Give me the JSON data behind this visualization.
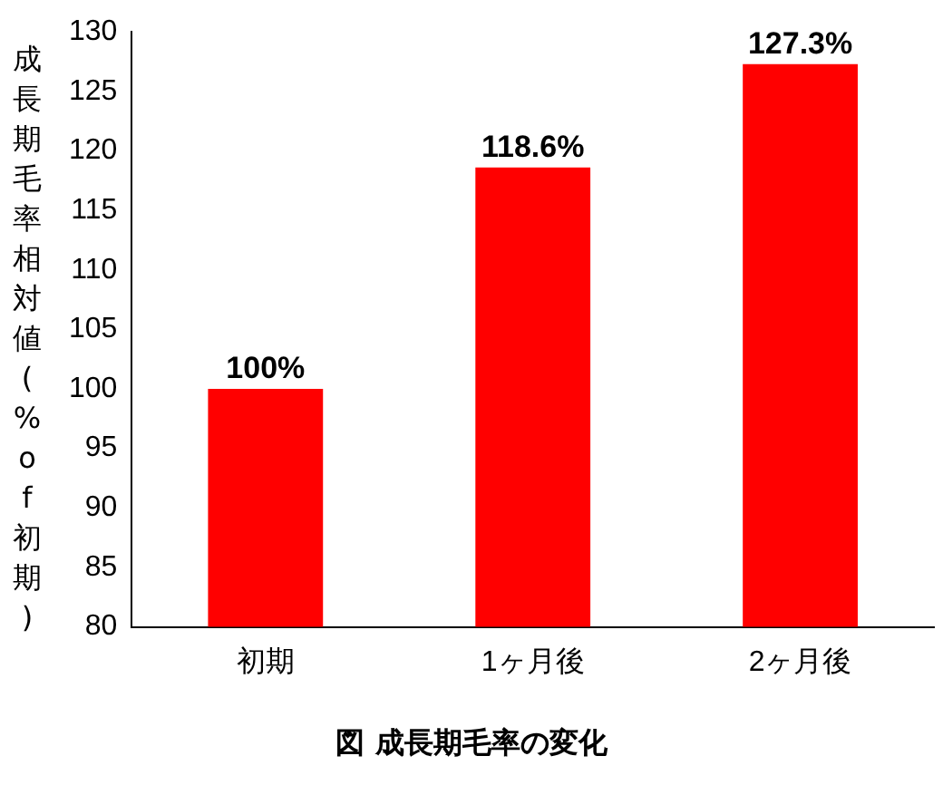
{
  "chart_data": {
    "type": "bar",
    "title": "図 成長期毛率の変化",
    "ylabel": "成長期毛率相対値(%of初期)",
    "categories": [
      "初期",
      "1ヶ月後",
      "2ヶ月後"
    ],
    "values": [
      100,
      118.6,
      127.3
    ],
    "value_labels": [
      "100%",
      "118.6%",
      "127.3%"
    ],
    "color": "#ff0000",
    "ylim": [
      80,
      130
    ],
    "yticks": [
      80,
      85,
      90,
      95,
      100,
      105,
      110,
      115,
      120,
      125,
      130
    ],
    "grid": false,
    "legend": false
  }
}
